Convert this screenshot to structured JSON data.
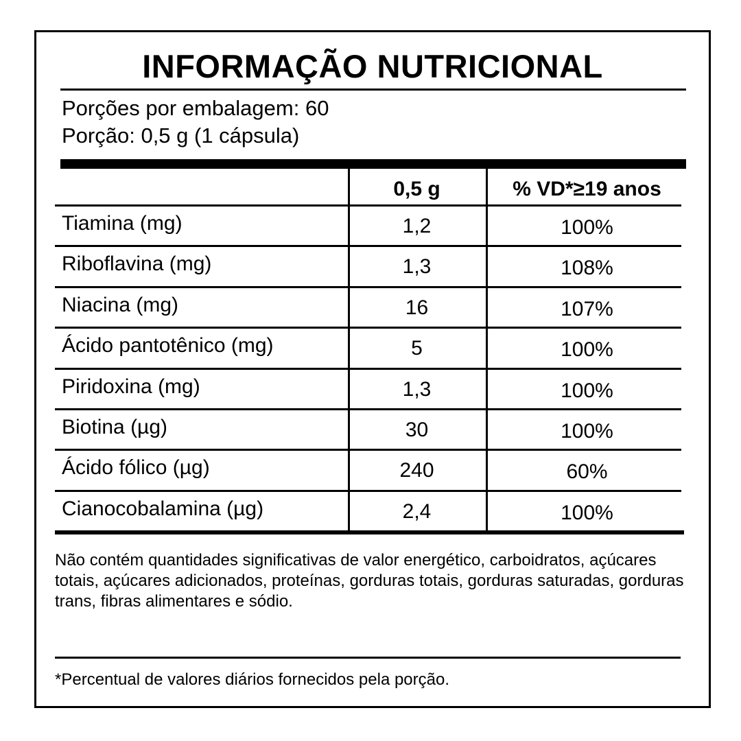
{
  "label": {
    "title": "INFORMAÇÃO NUTRICIONAL",
    "servings_per_package": "Porções por embalagem: 60",
    "serving_size": "Porção: 0,5 g (1 cápsula)"
  },
  "table": {
    "headers": [
      "",
      "0,5 g",
      "% VD*≥19 anos"
    ],
    "rows": [
      {
        "nutrient": "Tiamina (mg)",
        "amount": "1,2",
        "dv": "100%"
      },
      {
        "nutrient": "Riboflavina (mg)",
        "amount": "1,3",
        "dv": "108%"
      },
      {
        "nutrient": "Niacina (mg)",
        "amount": "16",
        "dv": "107%"
      },
      {
        "nutrient": "Ácido pantotênico (mg)",
        "amount": "5",
        "dv": "100%"
      },
      {
        "nutrient": "Piridoxina (mg)",
        "amount": "1,3",
        "dv": "100%"
      },
      {
        "nutrient": "Biotina (µg)",
        "amount": "30",
        "dv": "100%"
      },
      {
        "nutrient": "Ácido fólico (µg)",
        "amount": "240",
        "dv": "60%"
      },
      {
        "nutrient": "Cianocobalamina (µg)",
        "amount": "2,4",
        "dv": "100%"
      }
    ]
  },
  "footnotes": {
    "not_significant": "Não contém quantidades significativas de valor energético, carboidratos, açúcares totais, açúcares adicionados, proteínas, gorduras totais, gorduras saturadas, gorduras trans, fibras alimentares e sódio.",
    "dv_note": "*Percentual de valores diários fornecidos pela porção."
  },
  "colors": {
    "ink": "#000000",
    "background": "#ffffff"
  }
}
